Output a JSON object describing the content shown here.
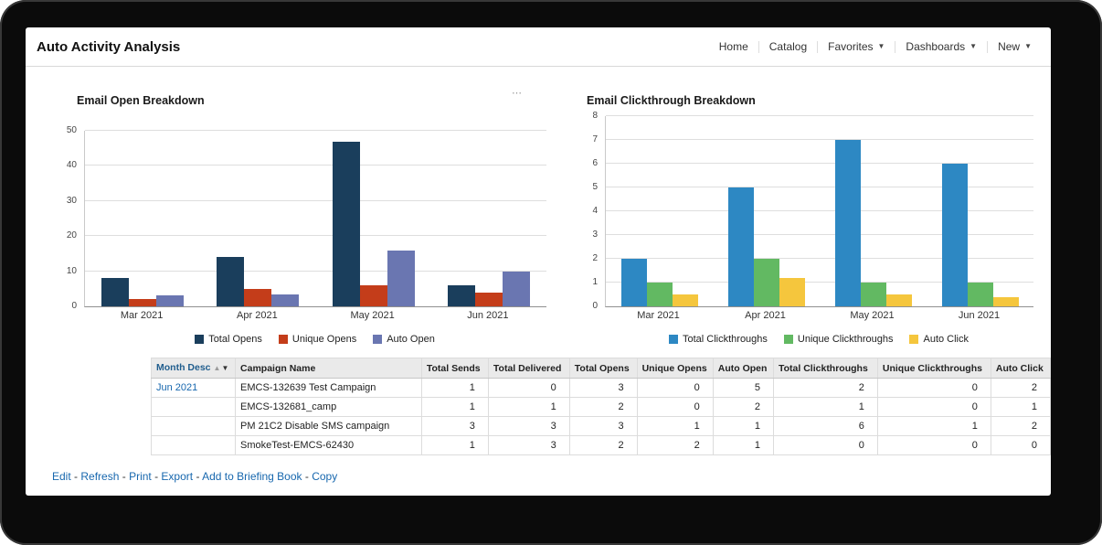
{
  "header": {
    "title": "Auto Activity Analysis",
    "nav": {
      "items": [
        {
          "label": "Home",
          "dropdown": false
        },
        {
          "label": "Catalog",
          "dropdown": false
        },
        {
          "label": "Favorites",
          "dropdown": true
        },
        {
          "label": "Dashboards",
          "dropdown": true
        },
        {
          "label": "New",
          "dropdown": true
        }
      ]
    }
  },
  "icons": {
    "caret": "▼",
    "sort_asc": "▲",
    "sort_desc": "▼",
    "overflow": "⋯"
  },
  "chart_data": [
    {
      "type": "bar",
      "title": "Email Open Breakdown",
      "categories": [
        "Mar 2021",
        "Apr 2021",
        "May 2021",
        "Jun 2021"
      ],
      "series": [
        {
          "name": "Total Opens",
          "color": "#1a3e5c",
          "values": [
            8,
            14,
            47,
            6
          ]
        },
        {
          "name": "Unique Opens",
          "color": "#c43d1a",
          "values": [
            2,
            5,
            6,
            4
          ]
        },
        {
          "name": "Auto Open",
          "color": "#6a76b1",
          "values": [
            3,
            3.5,
            16,
            10
          ]
        }
      ],
      "xlabel": "",
      "ylabel": "",
      "ylim": [
        0,
        50
      ],
      "yticks": [
        0,
        10,
        20,
        30,
        40,
        50
      ],
      "grid": true,
      "legend_position": "bottom"
    },
    {
      "type": "bar",
      "title": "Email Clickthrough Breakdown",
      "categories": [
        "Mar 2021",
        "Apr 2021",
        "May 2021",
        "Jun 2021"
      ],
      "series": [
        {
          "name": "Total Clickthroughs",
          "color": "#2d88c3",
          "values": [
            2,
            5,
            7,
            6
          ]
        },
        {
          "name": "Unique Clickthroughs",
          "color": "#62b962",
          "values": [
            1,
            2,
            1,
            1
          ]
        },
        {
          "name": "Auto Click",
          "color": "#f5c63d",
          "values": [
            0.5,
            1.2,
            0.5,
            0.4
          ]
        }
      ],
      "xlabel": "",
      "ylabel": "",
      "ylim": [
        0,
        8
      ],
      "yticks": [
        0,
        1,
        2,
        3,
        4,
        5,
        6,
        7,
        8
      ],
      "grid": true,
      "legend_position": "bottom"
    }
  ],
  "table": {
    "columns": [
      "Month Desc",
      "Campaign Name",
      "Total Sends",
      "Total Delivered",
      "Total Opens",
      "Unique Opens",
      "Auto Open",
      "Total Clickthroughs",
      "Unique Clickthroughs",
      "Auto Click"
    ],
    "rows": [
      {
        "month": "Jun 2021",
        "campaign": "EMCS-132639 Test Campaign",
        "metrics": [
          1,
          0,
          3,
          0,
          5,
          2,
          0,
          2
        ]
      },
      {
        "month": "",
        "campaign": "EMCS-132681_camp",
        "metrics": [
          1,
          1,
          2,
          0,
          2,
          1,
          0,
          1
        ]
      },
      {
        "month": "",
        "campaign": "PM 21C2 Disable SMS campaign",
        "metrics": [
          3,
          3,
          3,
          1,
          1,
          6,
          1,
          2
        ]
      },
      {
        "month": "",
        "campaign": "SmokeTest-EMCS-62430",
        "metrics": [
          1,
          3,
          2,
          2,
          1,
          0,
          0,
          0
        ]
      }
    ]
  },
  "footer": {
    "links": [
      "Edit",
      "Refresh",
      "Print",
      "Export",
      "Add to Briefing Book",
      "Copy"
    ],
    "separator": "-"
  }
}
